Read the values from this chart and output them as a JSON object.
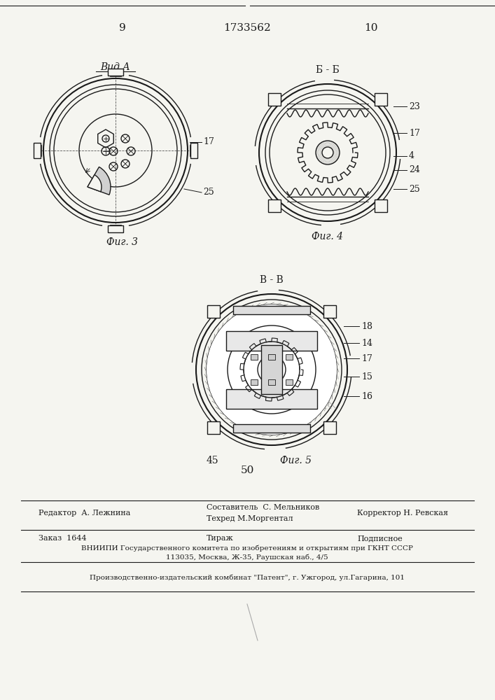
{
  "bg_color": "#f5f5f0",
  "line_color": "#1a1a1a",
  "page_number_left": "9",
  "page_number_center": "1733562",
  "page_number_right": "10",
  "fig3_label": "Вид А",
  "fig3_caption": "Фиг. 3",
  "fig4_caption": "Фиг. 4",
  "fig4_section": "Б - Б",
  "fig5_caption": "Фиг. 5",
  "fig5_section": "В - В",
  "num_45": "45",
  "num_50": "50",
  "footer_line1_left": "Редактор  А. Лежнина",
  "footer_line1_center_top": "Составитель  С. Мельников",
  "footer_line1_center_bot": "Техред М.Моргентал",
  "footer_line1_right": "Корректор Н. Ревская",
  "footer_line2_left": "Заказ  1644",
  "footer_line2_center": "Тираж",
  "footer_line2_right": "Подписное",
  "footer_line3": "ВНИИПИ Государственного комитета по изобретениям и открытиям при ГКНТ СССР",
  "footer_line4": "113035, Москва, Ж-35, Раушская наб., 4/5",
  "footer_line5": "Производственно-издательский комбинат \"Патент\", г. Ужгород, ул.Гагарина, 101"
}
